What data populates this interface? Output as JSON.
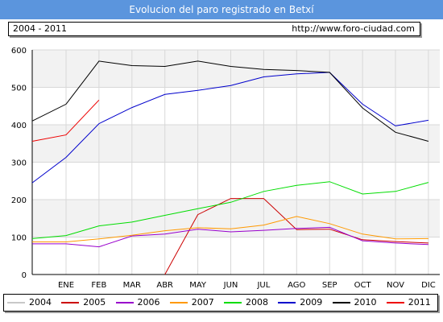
{
  "header": {
    "title": "Evolucion del paro registrado en Betxí",
    "range": "2004 - 2011",
    "url": "http://www.foro-ciudad.com"
  },
  "chart_data": {
    "type": "line",
    "categories": [
      "ENE",
      "FEB",
      "MAR",
      "ABR",
      "MAY",
      "JUN",
      "JUL",
      "AGO",
      "SEP",
      "OCT",
      "NOV",
      "DIC"
    ],
    "ylim": [
      0,
      600
    ],
    "yticks": [
      "0",
      "100",
      "200",
      "300",
      "400",
      "500",
      "600"
    ],
    "grid": true,
    "legend_position": "bottom",
    "series": [
      {
        "name": "2004",
        "color": "#c8c8c8",
        "values": [
          null,
          null,
          null,
          null,
          null,
          null,
          null,
          null,
          null,
          null,
          null,
          null
        ]
      },
      {
        "name": "2005",
        "color": "#cc0000",
        "values": [
          null,
          null,
          null,
          0,
          160,
          203,
          203,
          120,
          121,
          93,
          88,
          84
        ]
      },
      {
        "name": "2006",
        "color": "#9900cc",
        "values": [
          82,
          74,
          103,
          108,
          121,
          114,
          118,
          123,
          126,
          90,
          84,
          80
        ]
      },
      {
        "name": "2007",
        "color": "#ff9900",
        "values": [
          87,
          95,
          105,
          117,
          125,
          122,
          132,
          155,
          136,
          108,
          95,
          96
        ]
      },
      {
        "name": "2008",
        "color": "#00dd00",
        "values": [
          104,
          130,
          140,
          158,
          176,
          193,
          222,
          238,
          248,
          215,
          222,
          246
        ]
      },
      {
        "name": "2009",
        "color": "#0000cc",
        "values": [
          313,
          403,
          446,
          481,
          492,
          505,
          528,
          536,
          540,
          455,
          397,
          412
        ]
      },
      {
        "name": "2010",
        "color": "#000000",
        "values": [
          455,
          570,
          558,
          556,
          570,
          556,
          548,
          545,
          540,
          445,
          380,
          356
        ]
      },
      {
        "name": "2011",
        "color": "#ee0000",
        "values": [
          373,
          466,
          null,
          null,
          null,
          null,
          null,
          null,
          null,
          null,
          null,
          null
        ]
      }
    ],
    "edge_left": {
      "2008": 96,
      "2009": 245,
      "2010": 410,
      "2011": 356,
      "2006": 82,
      "2007": 87
    },
    "edge_right": {}
  }
}
